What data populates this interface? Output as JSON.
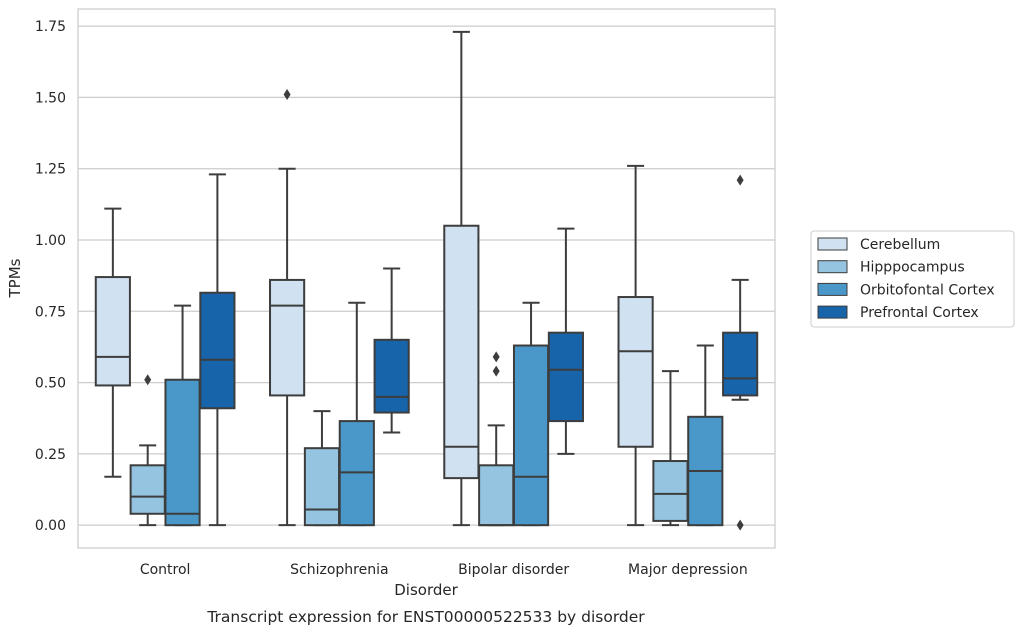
{
  "chart_data": {
    "type": "box",
    "caption": "Transcript expression for ENST00000522533 by disorder",
    "xlabel": "Disorder",
    "ylabel": "TPMs",
    "ylim": [
      -0.08,
      1.81
    ],
    "yticks": [
      "0.00",
      "0.25",
      "0.50",
      "0.75",
      "1.00",
      "1.25",
      "1.50",
      "1.75"
    ],
    "grid": "horizontal",
    "legend_position": "right",
    "categories": [
      "Control",
      "Schizophrenia",
      "Bipolar disorder",
      "Major depression"
    ],
    "series": [
      {
        "name": "Cerebellum",
        "color": "#d0e1f2",
        "boxes": [
          {
            "whisker_low": 0.17,
            "q1": 0.49,
            "median": 0.59,
            "q3": 0.87,
            "whisker_high": 1.11,
            "outliers": []
          },
          {
            "whisker_low": 0.0,
            "q1": 0.455,
            "median": 0.77,
            "q3": 0.86,
            "whisker_high": 1.25,
            "outliers": [
              1.51
            ]
          },
          {
            "whisker_low": 0.0,
            "q1": 0.165,
            "median": 0.275,
            "q3": 1.05,
            "whisker_high": 1.73,
            "outliers": []
          },
          {
            "whisker_low": 0.0,
            "q1": 0.275,
            "median": 0.61,
            "q3": 0.8,
            "whisker_high": 1.26,
            "outliers": []
          }
        ]
      },
      {
        "name": "Hipppocampus",
        "color": "#94c4df",
        "boxes": [
          {
            "whisker_low": 0.0,
            "q1": 0.04,
            "median": 0.1,
            "q3": 0.21,
            "whisker_high": 0.28,
            "outliers": [
              0.51
            ]
          },
          {
            "whisker_low": 0.0,
            "q1": 0.0,
            "median": 0.055,
            "q3": 0.27,
            "whisker_high": 0.4,
            "outliers": []
          },
          {
            "whisker_low": 0.0,
            "q1": 0.0,
            "median": 0.0,
            "q3": 0.21,
            "whisker_high": 0.35,
            "outliers": [
              0.54,
              0.59
            ]
          },
          {
            "whisker_low": 0.0,
            "q1": 0.015,
            "median": 0.11,
            "q3": 0.225,
            "whisker_high": 0.54,
            "outliers": []
          }
        ]
      },
      {
        "name": "Orbitofontal Cortex",
        "color": "#4a98c9",
        "boxes": [
          {
            "whisker_low": 0.0,
            "q1": 0.0,
            "median": 0.04,
            "q3": 0.51,
            "whisker_high": 0.77,
            "outliers": []
          },
          {
            "whisker_low": 0.0,
            "q1": 0.0,
            "median": 0.185,
            "q3": 0.365,
            "whisker_high": 0.78,
            "outliers": []
          },
          {
            "whisker_low": 0.0,
            "q1": 0.0,
            "median": 0.17,
            "q3": 0.63,
            "whisker_high": 0.78,
            "outliers": []
          },
          {
            "whisker_low": 0.0,
            "q1": 0.0,
            "median": 0.19,
            "q3": 0.38,
            "whisker_high": 0.63,
            "outliers": []
          }
        ]
      },
      {
        "name": "Prefrontal Cortex",
        "color": "#1764ab",
        "boxes": [
          {
            "whisker_low": 0.0,
            "q1": 0.41,
            "median": 0.58,
            "q3": 0.815,
            "whisker_high": 1.23,
            "outliers": []
          },
          {
            "whisker_low": 0.325,
            "q1": 0.395,
            "median": 0.45,
            "q3": 0.65,
            "whisker_high": 0.9,
            "outliers": []
          },
          {
            "whisker_low": 0.25,
            "q1": 0.365,
            "median": 0.545,
            "q3": 0.675,
            "whisker_high": 1.04,
            "outliers": []
          },
          {
            "whisker_low": 0.44,
            "q1": 0.455,
            "median": 0.515,
            "q3": 0.675,
            "whisker_high": 0.86,
            "outliers": [
              1.21,
              0.0
            ]
          }
        ]
      }
    ]
  }
}
